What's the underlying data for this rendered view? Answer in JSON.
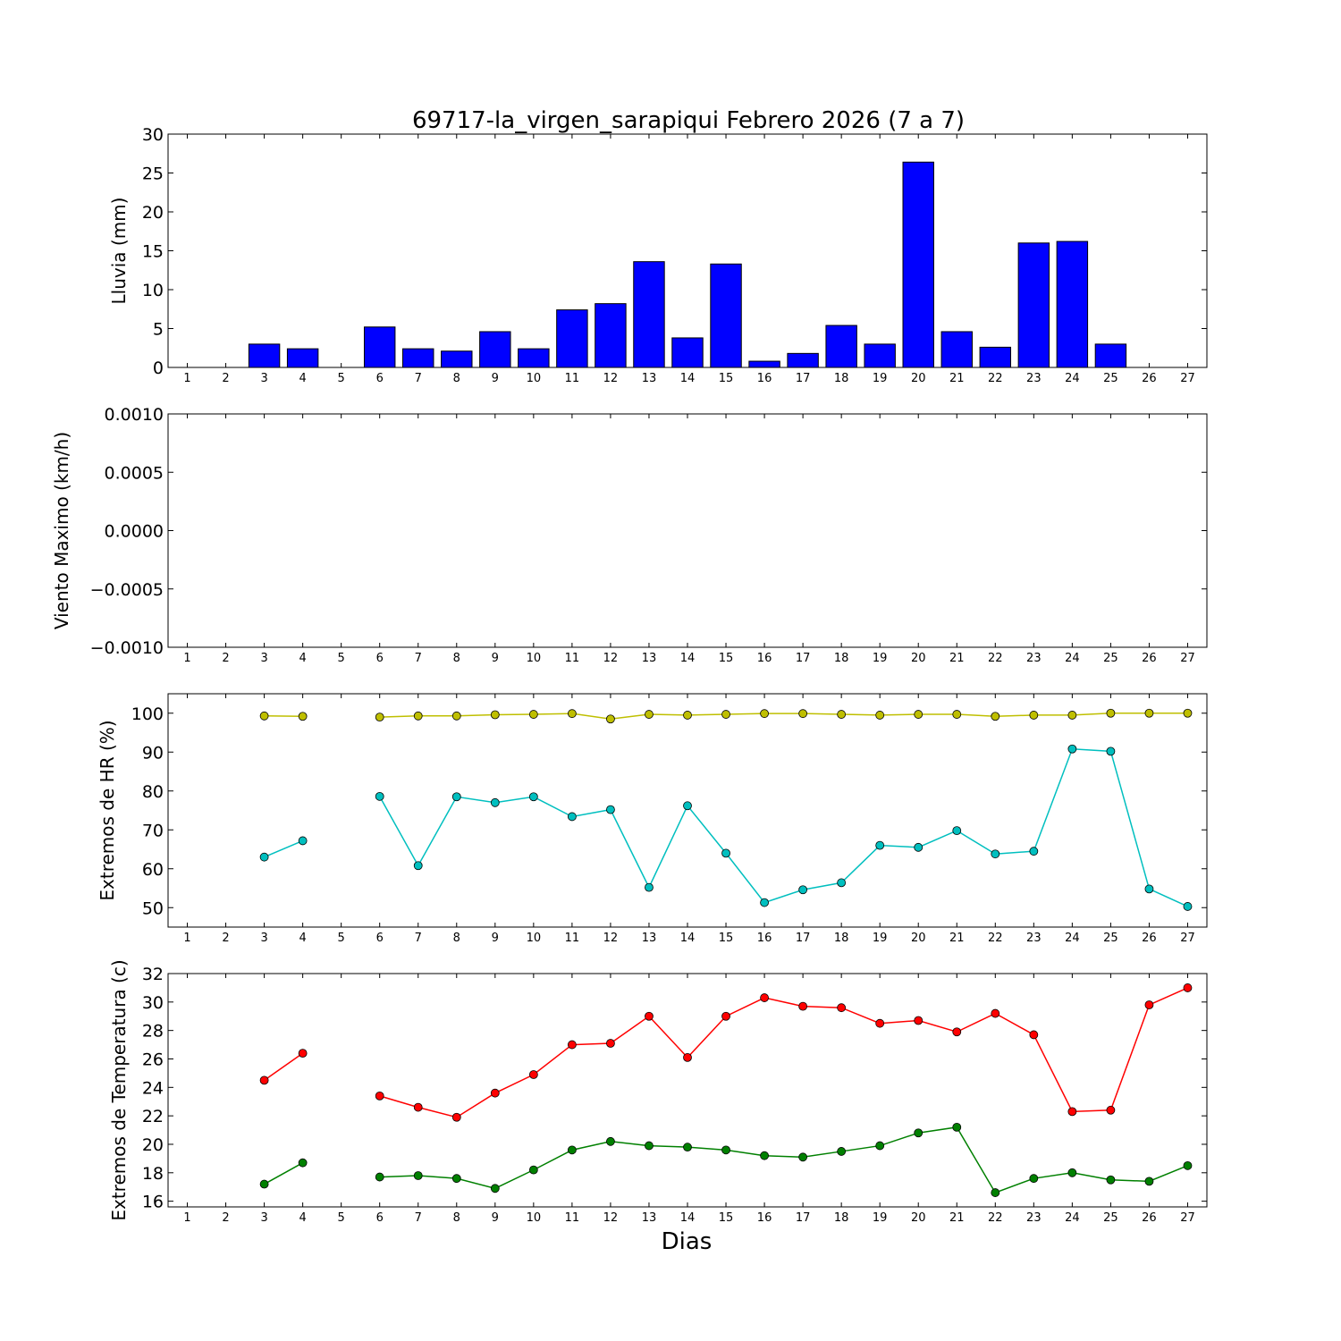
{
  "title": "69717-la_virgen_sarapiqui Febrero 2026  (7 a 7)",
  "xlabel": "Dias",
  "chart_data": [
    {
      "type": "bar",
      "ylabel": "Lluvia (mm)",
      "ylim": [
        0,
        30
      ],
      "yticks": [
        "0",
        "5",
        "10",
        "15",
        "20",
        "25",
        "30"
      ],
      "x": [
        1,
        2,
        3,
        4,
        5,
        6,
        7,
        8,
        9,
        10,
        11,
        12,
        13,
        14,
        15,
        16,
        17,
        18,
        19,
        20,
        21,
        22,
        23,
        24,
        25,
        26,
        27
      ],
      "xticks": [
        "1",
        "2",
        "3",
        "4",
        "5",
        "6",
        "7",
        "8",
        "9",
        "10",
        "11",
        "12",
        "13",
        "14",
        "15",
        "16",
        "17",
        "18",
        "19",
        "20",
        "21",
        "22",
        "23",
        "24",
        "25",
        "26",
        "27"
      ],
      "xlim": [
        0.5,
        27.5
      ],
      "series": [
        {
          "color": "#0000ff",
          "values": [
            0,
            0,
            3.0,
            2.4,
            0,
            5.2,
            2.4,
            2.1,
            4.6,
            2.4,
            7.4,
            8.2,
            13.6,
            3.8,
            13.3,
            0.8,
            1.8,
            5.4,
            3.0,
            26.4,
            4.6,
            2.6,
            16.0,
            16.2,
            3.0,
            0,
            0
          ]
        }
      ]
    },
    {
      "type": "line",
      "ylabel": "Viento Maximo (km/h)",
      "ylim": [
        -0.001,
        0.001
      ],
      "yticks": [
        "−0.0010",
        "−0.0005",
        "0.0000",
        "0.0005",
        "0.0010"
      ],
      "x": [
        1,
        2,
        3,
        4,
        5,
        6,
        7,
        8,
        9,
        10,
        11,
        12,
        13,
        14,
        15,
        16,
        17,
        18,
        19,
        20,
        21,
        22,
        23,
        24,
        25,
        26,
        27
      ],
      "xticks": [
        "1",
        "2",
        "3",
        "4",
        "5",
        "6",
        "7",
        "8",
        "9",
        "10",
        "11",
        "12",
        "13",
        "14",
        "15",
        "16",
        "17",
        "18",
        "19",
        "20",
        "21",
        "22",
        "23",
        "24",
        "25",
        "26",
        "27"
      ],
      "xlim": [
        0.5,
        27.5
      ],
      "series": []
    },
    {
      "type": "line",
      "ylabel": "Extremos de HR (%)",
      "ylim": [
        45,
        105
      ],
      "yticks": [
        "50",
        "60",
        "70",
        "80",
        "90",
        "100"
      ],
      "x": [
        1,
        2,
        3,
        4,
        5,
        6,
        7,
        8,
        9,
        10,
        11,
        12,
        13,
        14,
        15,
        16,
        17,
        18,
        19,
        20,
        21,
        22,
        23,
        24,
        25,
        26,
        27
      ],
      "xticks": [
        "1",
        "2",
        "3",
        "4",
        "5",
        "6",
        "7",
        "8",
        "9",
        "10",
        "11",
        "12",
        "13",
        "14",
        "15",
        "16",
        "17",
        "18",
        "19",
        "20",
        "21",
        "22",
        "23",
        "24",
        "25",
        "26",
        "27"
      ],
      "xlim": [
        0.5,
        27.5
      ],
      "series": [
        {
          "color": "#bfbf00",
          "values": [
            null,
            null,
            99.3,
            99.2,
            null,
            99.0,
            99.3,
            99.3,
            99.6,
            99.7,
            99.9,
            98.5,
            99.7,
            99.5,
            99.7,
            99.9,
            99.9,
            99.7,
            99.5,
            99.7,
            99.7,
            99.2,
            99.5,
            99.5,
            100.0,
            100.0,
            100.0
          ]
        },
        {
          "color": "#00bfbf",
          "values": [
            null,
            null,
            63.0,
            67.2,
            null,
            78.6,
            60.8,
            78.5,
            77.0,
            78.5,
            73.4,
            75.2,
            55.2,
            76.2,
            64.0,
            51.3,
            54.6,
            56.4,
            66.0,
            65.5,
            69.8,
            63.8,
            64.5,
            90.8,
            90.2,
            54.8,
            50.3
          ]
        }
      ]
    },
    {
      "type": "line",
      "ylabel": "Extremos de Temperatura (c)",
      "ylim": [
        15.6,
        32
      ],
      "yticks": [
        "16",
        "18",
        "20",
        "22",
        "24",
        "26",
        "28",
        "30",
        "32"
      ],
      "x": [
        1,
        2,
        3,
        4,
        5,
        6,
        7,
        8,
        9,
        10,
        11,
        12,
        13,
        14,
        15,
        16,
        17,
        18,
        19,
        20,
        21,
        22,
        23,
        24,
        25,
        26,
        27
      ],
      "xticks": [
        "1",
        "2",
        "3",
        "4",
        "5",
        "6",
        "7",
        "8",
        "9",
        "10",
        "11",
        "12",
        "13",
        "14",
        "15",
        "16",
        "17",
        "18",
        "19",
        "20",
        "21",
        "22",
        "23",
        "24",
        "25",
        "26",
        "27"
      ],
      "xlim": [
        0.5,
        27.5
      ],
      "series": [
        {
          "color": "#ff0000",
          "values": [
            null,
            null,
            24.5,
            26.4,
            null,
            23.4,
            22.6,
            21.9,
            23.6,
            24.9,
            27.0,
            27.1,
            29.0,
            26.1,
            29.0,
            30.3,
            29.7,
            29.6,
            28.5,
            28.7,
            27.9,
            29.2,
            27.7,
            22.3,
            22.4,
            29.8,
            31.0
          ]
        },
        {
          "color": "#008000",
          "values": [
            null,
            null,
            17.2,
            18.7,
            null,
            17.7,
            17.8,
            17.6,
            16.9,
            18.2,
            19.6,
            20.2,
            19.9,
            19.8,
            19.6,
            19.2,
            19.1,
            19.5,
            19.9,
            20.8,
            21.2,
            16.6,
            17.6,
            18.0,
            17.5,
            17.4,
            18.5
          ]
        }
      ]
    }
  ]
}
